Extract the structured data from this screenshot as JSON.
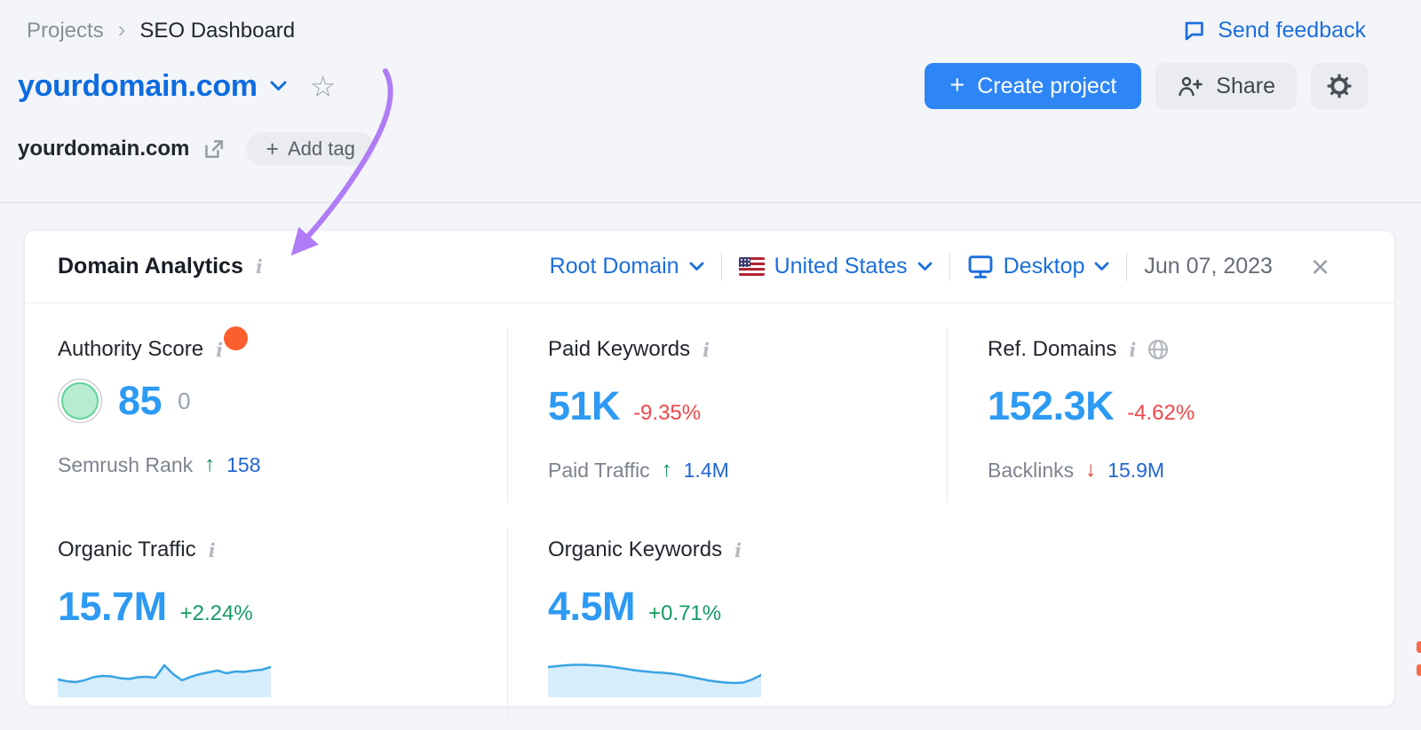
{
  "breadcrumb": {
    "parent": "Projects",
    "current": "SEO Dashboard"
  },
  "topbar": {
    "send_feedback": "Send feedback"
  },
  "project": {
    "title": "yourdomain.com",
    "domain": "yourdomain.com",
    "add_tag": "Add tag",
    "create_project": "Create project",
    "share": "Share"
  },
  "icons": {
    "plus": "+",
    "up": "↑",
    "down": "↓",
    "close": "×",
    "chevron": "›",
    "star": "☆",
    "info": "i"
  },
  "card": {
    "title": "Domain Analytics",
    "filters": {
      "scope": "Root Domain",
      "country": "United States",
      "device": "Desktop",
      "date": "Jun 07, 2023"
    },
    "metrics": {
      "authority": {
        "label": "Authority Score",
        "value": "85",
        "secondary": "0",
        "sub_label": "Semrush Rank",
        "sub_value": "158",
        "sub_trend": "up"
      },
      "paid_keywords": {
        "label": "Paid Keywords",
        "value": "51K",
        "change": "-9.35%",
        "sub_label": "Paid Traffic",
        "sub_value": "1.4M",
        "sub_trend": "up"
      },
      "ref_domains": {
        "label": "Ref. Domains",
        "value": "152.3K",
        "change": "-4.62%",
        "sub_label": "Backlinks",
        "sub_value": "15.9M",
        "sub_trend": "down"
      },
      "organic_traffic": {
        "label": "Organic Traffic",
        "value": "15.7M",
        "change": "+2.24%"
      },
      "organic_keywords": {
        "label": "Organic Keywords",
        "value": "4.5M",
        "change": "+0.71%"
      }
    }
  },
  "chart_data": [
    {
      "type": "area",
      "name": "organic-traffic-sparkline",
      "title": "Organic Traffic trend",
      "values": [
        40,
        36,
        34,
        38,
        45,
        48,
        47,
        43,
        41,
        45,
        46,
        44,
        72,
        52,
        38,
        46,
        52,
        56,
        60,
        54,
        58,
        57,
        60,
        62,
        68
      ],
      "ylim": [
        0,
        100
      ],
      "grid": false,
      "line_color": "#38a3e3",
      "fill_color": "#d6edfb"
    },
    {
      "type": "area",
      "name": "organic-keywords-sparkline",
      "title": "Organic Keywords trend",
      "values": [
        68,
        70,
        72,
        73,
        73,
        72,
        71,
        69,
        66,
        63,
        60,
        58,
        56,
        55,
        53,
        50,
        46,
        42,
        38,
        35,
        33,
        32,
        33,
        40,
        50
      ],
      "ylim": [
        0,
        100
      ],
      "grid": false,
      "line_color": "#38a3e3",
      "fill_color": "#d6edfb"
    }
  ],
  "colors": {
    "accent_blue": "#2e86f6",
    "link_blue": "#1b6fdd",
    "metric_blue": "#2d9af3",
    "negative_red": "#f0474a",
    "positive_green": "#149b62",
    "annotation_purple": "#b07cf6",
    "notification_orange": "#fb5f2e"
  }
}
